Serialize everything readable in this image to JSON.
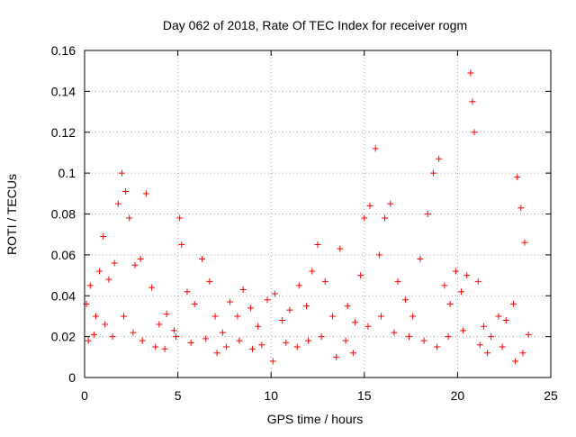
{
  "chart_data": {
    "type": "scatter",
    "title": "Day 062 of 2018, Rate Of TEC Index for receiver rogm",
    "xlabel": "GPS time / hours",
    "ylabel": "ROTI / TECUs",
    "xlim": [
      0,
      25
    ],
    "ylim": [
      0,
      0.16
    ],
    "x_ticks": [
      0,
      5,
      10,
      15,
      20,
      25
    ],
    "x_tick_labels": [
      "0",
      "5",
      "10",
      "15",
      "20",
      "25"
    ],
    "y_ticks": [
      0,
      0.02,
      0.04,
      0.06,
      0.08,
      0.1,
      0.12,
      0.14,
      0.16
    ],
    "y_tick_labels": [
      "0",
      "0.02",
      "0.04",
      "0.06",
      "0.08",
      "0.1",
      "0.12",
      "0.14",
      "0.16"
    ],
    "grid": true,
    "marker": "+",
    "marker_color": "#ff0000",
    "series": [
      {
        "points": [
          [
            0.1,
            0.036
          ],
          [
            0.3,
            0.045
          ],
          [
            0.5,
            0.021
          ],
          [
            0.8,
            0.052
          ],
          [
            1.0,
            0.069
          ],
          [
            1.3,
            0.048
          ],
          [
            1.6,
            0.056
          ],
          [
            1.8,
            0.085
          ],
          [
            2.0,
            0.1
          ],
          [
            2.2,
            0.091
          ],
          [
            2.4,
            0.078
          ],
          [
            2.7,
            0.055
          ],
          [
            3.0,
            0.058
          ],
          [
            3.3,
            0.09
          ],
          [
            3.6,
            0.044
          ],
          [
            4.0,
            0.026
          ],
          [
            4.4,
            0.031
          ],
          [
            4.8,
            0.023
          ],
          [
            5.1,
            0.078
          ],
          [
            5.2,
            0.065
          ],
          [
            5.5,
            0.042
          ],
          [
            5.9,
            0.036
          ],
          [
            6.3,
            0.058
          ],
          [
            6.7,
            0.047
          ],
          [
            7.0,
            0.03
          ],
          [
            7.4,
            0.022
          ],
          [
            7.8,
            0.037
          ],
          [
            8.2,
            0.03
          ],
          [
            8.5,
            0.043
          ],
          [
            8.9,
            0.034
          ],
          [
            9.3,
            0.025
          ],
          [
            9.8,
            0.038
          ],
          [
            10.2,
            0.041
          ],
          [
            10.6,
            0.028
          ],
          [
            11.0,
            0.033
          ],
          [
            11.5,
            0.045
          ],
          [
            11.9,
            0.035
          ],
          [
            12.2,
            0.052
          ],
          [
            12.5,
            0.065
          ],
          [
            12.9,
            0.047
          ],
          [
            13.3,
            0.03
          ],
          [
            13.7,
            0.063
          ],
          [
            14.1,
            0.035
          ],
          [
            14.5,
            0.027
          ],
          [
            14.8,
            0.05
          ],
          [
            15.0,
            0.078
          ],
          [
            15.3,
            0.084
          ],
          [
            15.6,
            0.112
          ],
          [
            15.8,
            0.06
          ],
          [
            16.1,
            0.078
          ],
          [
            16.4,
            0.085
          ],
          [
            16.8,
            0.047
          ],
          [
            17.2,
            0.038
          ],
          [
            17.6,
            0.03
          ],
          [
            18.0,
            0.058
          ],
          [
            18.4,
            0.08
          ],
          [
            18.7,
            0.1
          ],
          [
            19.0,
            0.107
          ],
          [
            19.3,
            0.045
          ],
          [
            19.6,
            0.036
          ],
          [
            19.9,
            0.052
          ],
          [
            20.2,
            0.042
          ],
          [
            20.5,
            0.05
          ],
          [
            20.7,
            0.149
          ],
          [
            20.8,
            0.135
          ],
          [
            20.9,
            0.12
          ],
          [
            21.1,
            0.047
          ],
          [
            21.4,
            0.025
          ],
          [
            21.8,
            0.02
          ],
          [
            22.2,
            0.03
          ],
          [
            22.6,
            0.028
          ],
          [
            23.0,
            0.036
          ],
          [
            23.2,
            0.098
          ],
          [
            23.4,
            0.083
          ],
          [
            23.6,
            0.066
          ],
          [
            23.8,
            0.021
          ],
          [
            0.2,
            0.018
          ],
          [
            0.6,
            0.03
          ],
          [
            1.1,
            0.026
          ],
          [
            1.5,
            0.02
          ],
          [
            2.1,
            0.03
          ],
          [
            2.6,
            0.022
          ],
          [
            3.1,
            0.018
          ],
          [
            3.8,
            0.015
          ],
          [
            4.3,
            0.014
          ],
          [
            4.9,
            0.02
          ],
          [
            5.7,
            0.017
          ],
          [
            6.5,
            0.019
          ],
          [
            7.1,
            0.012
          ],
          [
            7.6,
            0.015
          ],
          [
            8.3,
            0.018
          ],
          [
            9.0,
            0.014
          ],
          [
            9.5,
            0.016
          ],
          [
            10.1,
            0.008
          ],
          [
            10.8,
            0.017
          ],
          [
            11.4,
            0.015
          ],
          [
            12.0,
            0.018
          ],
          [
            12.7,
            0.02
          ],
          [
            13.5,
            0.01
          ],
          [
            14.0,
            0.018
          ],
          [
            14.4,
            0.012
          ],
          [
            15.2,
            0.025
          ],
          [
            15.9,
            0.03
          ],
          [
            16.6,
            0.022
          ],
          [
            17.4,
            0.02
          ],
          [
            18.2,
            0.018
          ],
          [
            18.9,
            0.015
          ],
          [
            19.5,
            0.02
          ],
          [
            20.3,
            0.023
          ],
          [
            21.2,
            0.016
          ],
          [
            21.6,
            0.012
          ],
          [
            22.4,
            0.015
          ],
          [
            23.1,
            0.008
          ],
          [
            23.5,
            0.012
          ]
        ]
      }
    ]
  }
}
